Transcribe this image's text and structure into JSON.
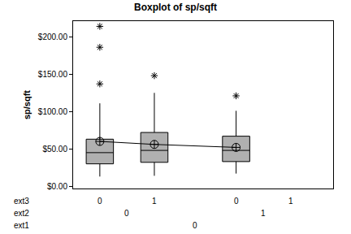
{
  "chart_data": {
    "type": "box",
    "title": "Boxplot of sp/sqft",
    "y_label": "sp/sqft",
    "factors": [
      {
        "name": "ext3",
        "levels": [
          0,
          1,
          0,
          1
        ]
      },
      {
        "name": "ext2",
        "levels": [
          0,
          0,
          1,
          1
        ]
      },
      {
        "name": "ext1",
        "levels": [
          0,
          0,
          0,
          0
        ]
      }
    ],
    "q1": [
      30,
      32,
      33,
      null
    ],
    "median": [
      45,
      48,
      48,
      null
    ],
    "q3": [
      63,
      72,
      67,
      null
    ],
    "whisker_low": [
      13,
      14,
      17,
      null
    ],
    "whisker_high": [
      111,
      125,
      101,
      null
    ],
    "mean": [
      60,
      56,
      52,
      null
    ],
    "outliers": [
      [
        137,
        186,
        214
      ],
      [
        148
      ],
      [
        121
      ],
      []
    ],
    "color": "#b0b0b0",
    "ylim": [
      -3,
      221
    ],
    "yticks": [
      {
        "value": 0,
        "label": "$0.00"
      },
      {
        "value": 50,
        "label": "$50.00"
      },
      {
        "value": 100,
        "label": "$100.00"
      },
      {
        "value": 150,
        "label": "$150.00"
      },
      {
        "value": 200,
        "label": "$200.00"
      }
    ],
    "grid": false,
    "tick_labels": "y"
  }
}
